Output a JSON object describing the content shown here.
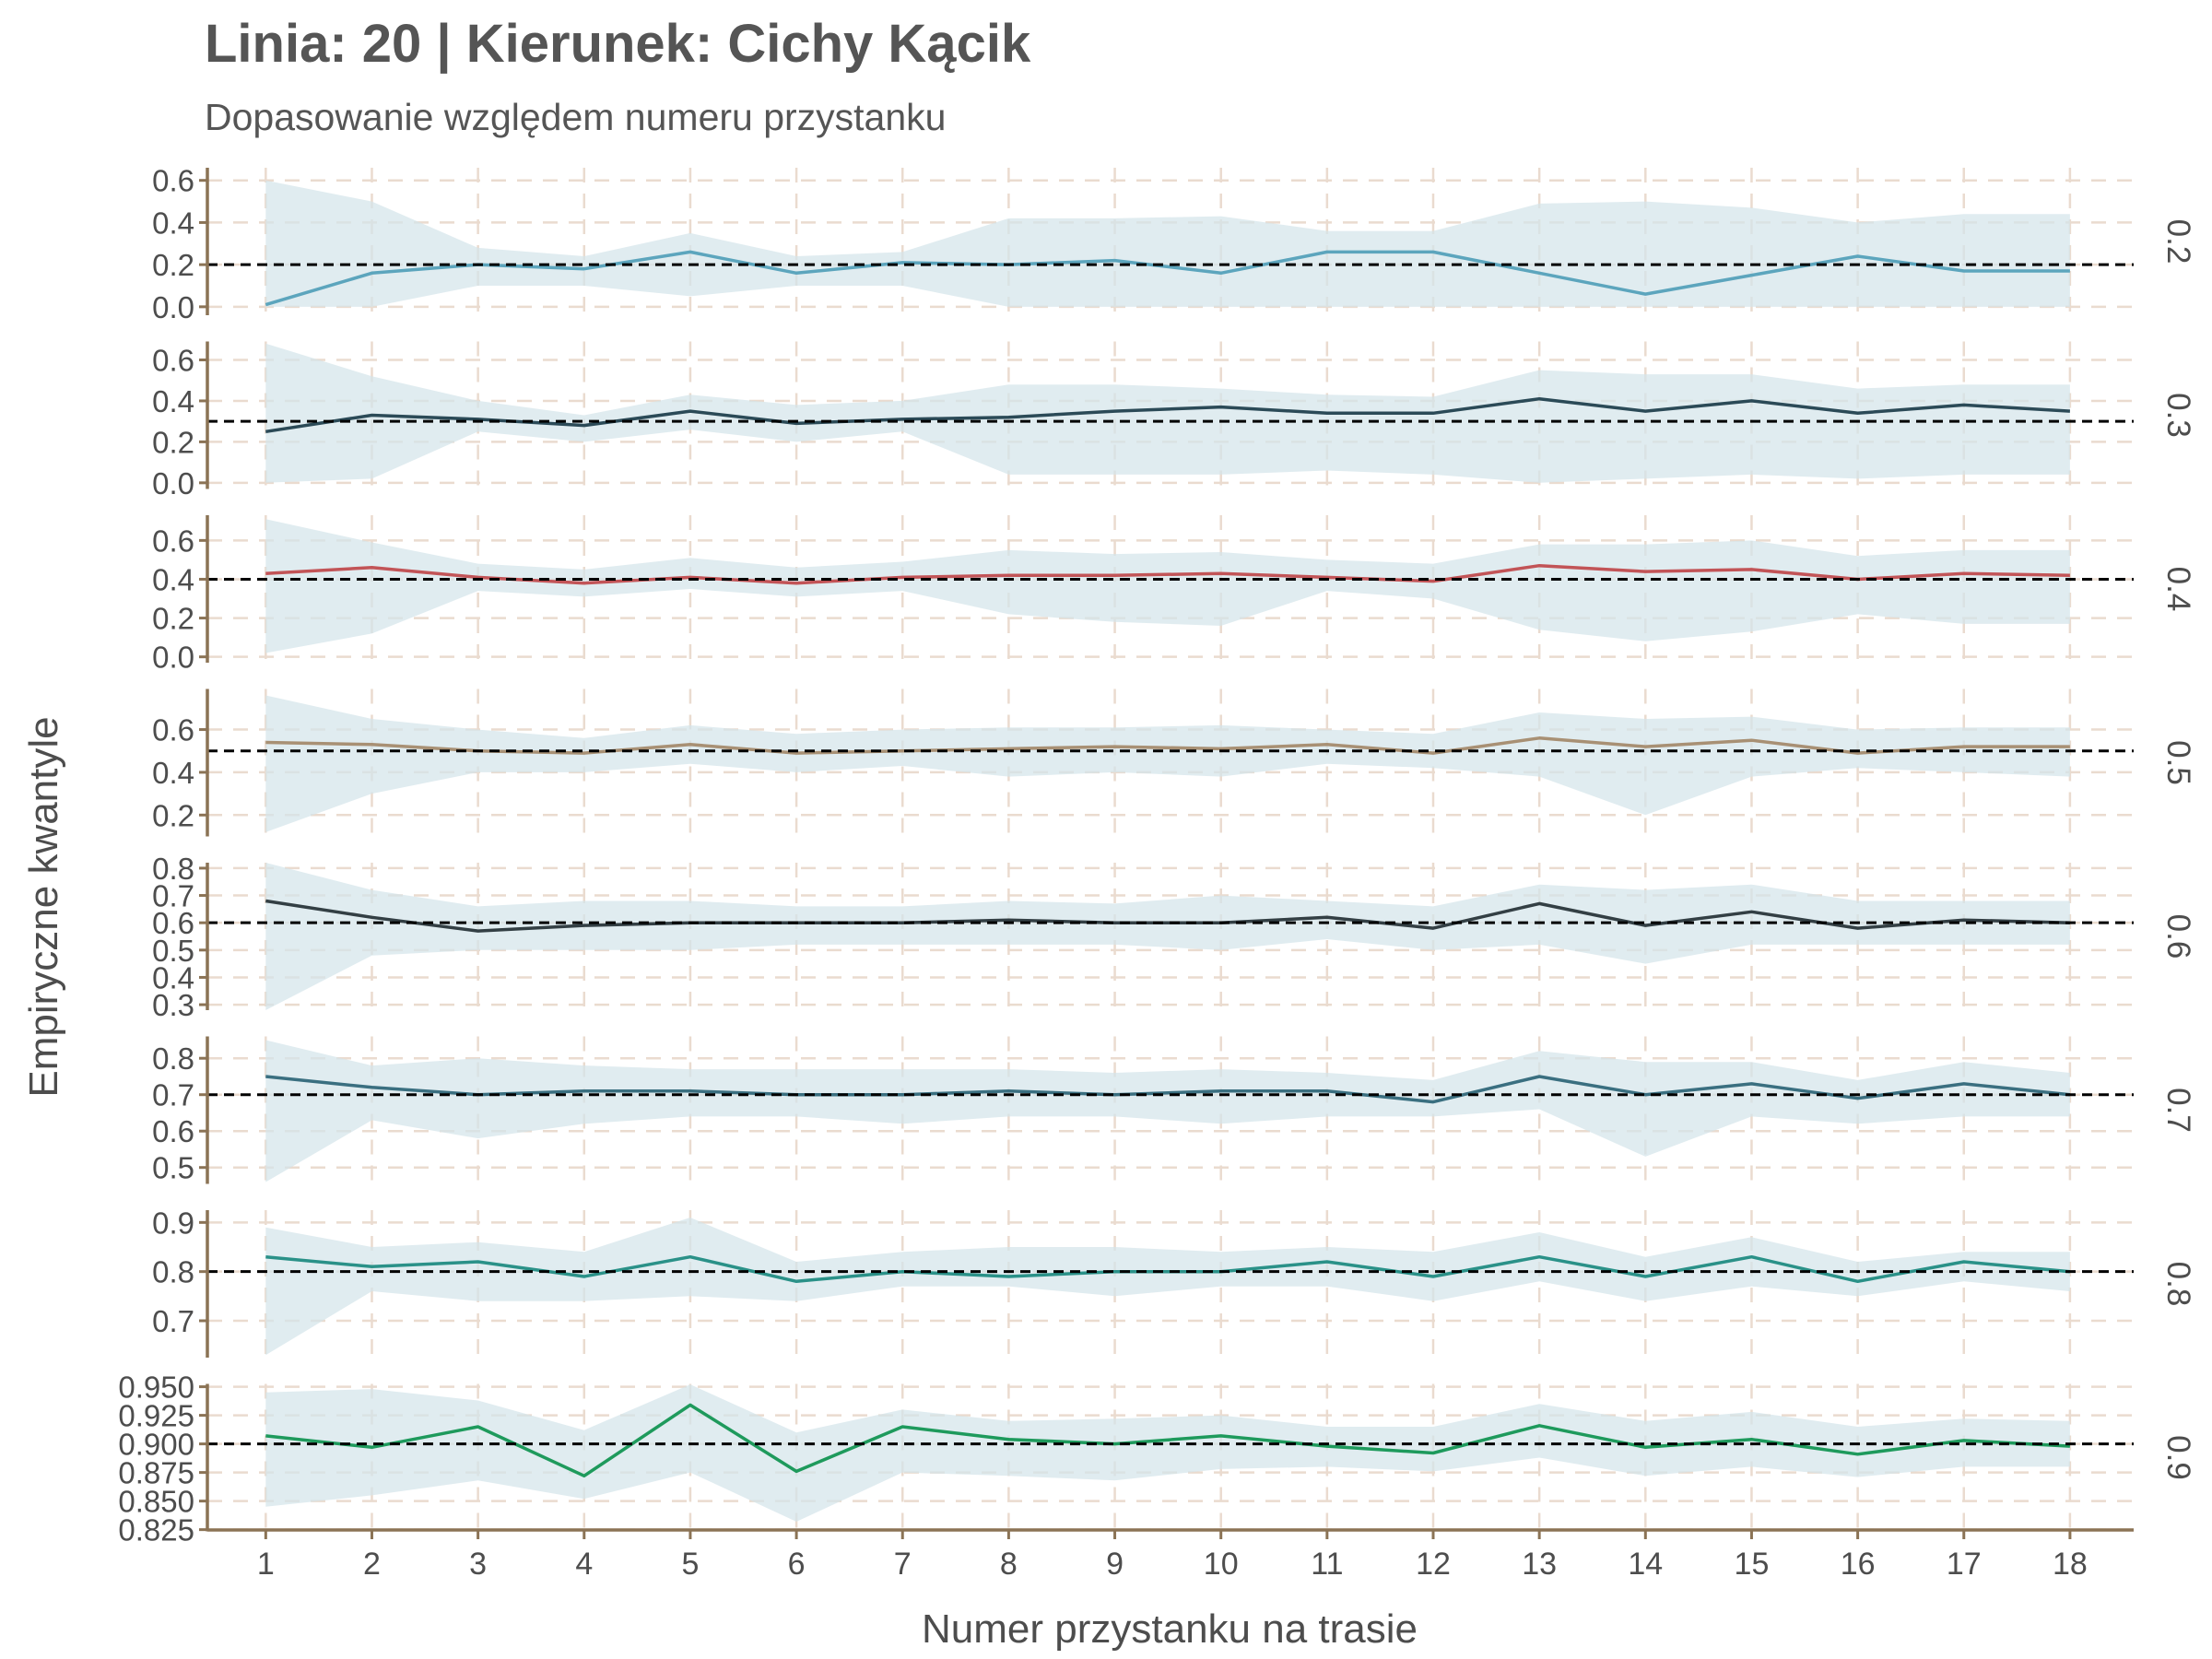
{
  "chart_data": {
    "type": "line",
    "title": "Linia: 20 | Kierunek: Cichy Kącik",
    "subtitle": "Dopasowanie względem numeru przystanku",
    "xlabel": "Numer przystanku na trasie",
    "ylabel": "Empiryczne kwantyle",
    "x": [
      1,
      2,
      3,
      4,
      5,
      6,
      7,
      8,
      9,
      10,
      11,
      12,
      13,
      14,
      15,
      16,
      17,
      18
    ],
    "grid": true,
    "colors": {
      "ribbon": "#d4e5ea",
      "grid": "#eadbcf",
      "axis": "#8b7355",
      "reference": "#000000"
    },
    "panels": [
      {
        "strip": "0.2",
        "reference": 0.2,
        "ylim": [
          -0.04,
          0.66
        ],
        "yticks": [
          0.0,
          0.2,
          0.4,
          0.6
        ],
        "ytick_labels": [
          "0.0",
          "0.2",
          "0.4",
          "0.6"
        ],
        "color": "#5ca5bd",
        "values": [
          0.01,
          0.16,
          0.2,
          0.18,
          0.26,
          0.16,
          0.21,
          0.2,
          0.22,
          0.16,
          0.26,
          0.26,
          0.16,
          0.06,
          0.15,
          0.24,
          0.17,
          0.17
        ],
        "lower": [
          0.0,
          0.0,
          0.1,
          0.1,
          0.05,
          0.1,
          0.1,
          0.0,
          0.0,
          0.0,
          0.0,
          0.0,
          0.0,
          0.0,
          0.0,
          0.0,
          0.0,
          0.0
        ],
        "upper": [
          0.6,
          0.5,
          0.28,
          0.24,
          0.35,
          0.24,
          0.26,
          0.42,
          0.42,
          0.43,
          0.36,
          0.36,
          0.49,
          0.5,
          0.47,
          0.4,
          0.44,
          0.44
        ]
      },
      {
        "strip": "0.3",
        "reference": 0.3,
        "ylim": [
          -0.03,
          0.69
        ],
        "yticks": [
          0.0,
          0.2,
          0.4,
          0.6
        ],
        "ytick_labels": [
          "0.0",
          "0.2",
          "0.4",
          "0.6"
        ],
        "color": "#2b4a57",
        "values": [
          0.25,
          0.33,
          0.31,
          0.28,
          0.35,
          0.29,
          0.31,
          0.32,
          0.35,
          0.37,
          0.34,
          0.34,
          0.41,
          0.35,
          0.4,
          0.34,
          0.38,
          0.35
        ],
        "lower": [
          0.0,
          0.02,
          0.25,
          0.2,
          0.26,
          0.2,
          0.25,
          0.04,
          0.04,
          0.04,
          0.06,
          0.04,
          0.0,
          0.02,
          0.04,
          0.02,
          0.04,
          0.04
        ],
        "upper": [
          0.68,
          0.52,
          0.4,
          0.33,
          0.43,
          0.38,
          0.4,
          0.48,
          0.48,
          0.46,
          0.43,
          0.42,
          0.55,
          0.53,
          0.53,
          0.46,
          0.48,
          0.48
        ]
      },
      {
        "strip": "0.4",
        "reference": 0.4,
        "ylim": [
          -0.03,
          0.73
        ],
        "yticks": [
          0.0,
          0.2,
          0.4,
          0.6
        ],
        "ytick_labels": [
          "0.0",
          "0.2",
          "0.4",
          "0.6"
        ],
        "color": "#c25457",
        "values": [
          0.43,
          0.46,
          0.41,
          0.38,
          0.41,
          0.38,
          0.41,
          0.42,
          0.42,
          0.43,
          0.41,
          0.39,
          0.47,
          0.44,
          0.45,
          0.4,
          0.43,
          0.42
        ],
        "lower": [
          0.02,
          0.12,
          0.34,
          0.31,
          0.35,
          0.31,
          0.34,
          0.22,
          0.18,
          0.16,
          0.34,
          0.3,
          0.14,
          0.08,
          0.13,
          0.22,
          0.17,
          0.17
        ],
        "upper": [
          0.71,
          0.59,
          0.48,
          0.45,
          0.51,
          0.46,
          0.49,
          0.55,
          0.53,
          0.54,
          0.5,
          0.48,
          0.58,
          0.58,
          0.6,
          0.52,
          0.55,
          0.55
        ]
      },
      {
        "strip": "0.5",
        "reference": 0.5,
        "ylim": [
          0.1,
          0.79
        ],
        "yticks": [
          0.2,
          0.4,
          0.6
        ],
        "ytick_labels": [
          "0.2",
          "0.4",
          "0.6"
        ],
        "color": "#a89074",
        "values": [
          0.54,
          0.53,
          0.5,
          0.49,
          0.53,
          0.49,
          0.5,
          0.51,
          0.52,
          0.51,
          0.53,
          0.49,
          0.56,
          0.52,
          0.55,
          0.49,
          0.52,
          0.52
        ],
        "lower": [
          0.12,
          0.3,
          0.4,
          0.4,
          0.44,
          0.4,
          0.43,
          0.38,
          0.4,
          0.38,
          0.44,
          0.42,
          0.38,
          0.2,
          0.38,
          0.42,
          0.4,
          0.38
        ],
        "upper": [
          0.76,
          0.65,
          0.6,
          0.56,
          0.62,
          0.58,
          0.6,
          0.61,
          0.61,
          0.62,
          0.6,
          0.58,
          0.68,
          0.65,
          0.66,
          0.6,
          0.61,
          0.61
        ]
      },
      {
        "strip": "0.6",
        "reference": 0.6,
        "ylim": [
          0.28,
          0.82
        ],
        "yticks": [
          0.3,
          0.4,
          0.5,
          0.6,
          0.7,
          0.8
        ],
        "ytick_labels": [
          "0.3",
          "0.4",
          "0.5",
          "0.6",
          "0.7",
          "0.8"
        ],
        "color": "#333f44",
        "values": [
          0.68,
          0.62,
          0.57,
          0.59,
          0.6,
          0.6,
          0.6,
          0.61,
          0.6,
          0.6,
          0.62,
          0.58,
          0.67,
          0.59,
          0.64,
          0.58,
          0.61,
          0.6
        ],
        "lower": [
          0.28,
          0.48,
          0.5,
          0.5,
          0.5,
          0.52,
          0.52,
          0.52,
          0.52,
          0.5,
          0.54,
          0.5,
          0.52,
          0.45,
          0.52,
          0.52,
          0.52,
          0.52
        ],
        "upper": [
          0.82,
          0.72,
          0.66,
          0.68,
          0.68,
          0.66,
          0.66,
          0.68,
          0.67,
          0.7,
          0.68,
          0.66,
          0.74,
          0.72,
          0.74,
          0.68,
          0.68,
          0.68
        ]
      },
      {
        "strip": "0.7",
        "reference": 0.7,
        "ylim": [
          0.455,
          0.86
        ],
        "yticks": [
          0.5,
          0.6,
          0.7,
          0.8
        ],
        "ytick_labels": [
          "0.5",
          "0.6",
          "0.7",
          "0.8"
        ],
        "color": "#3a6f80",
        "values": [
          0.75,
          0.72,
          0.7,
          0.71,
          0.71,
          0.7,
          0.7,
          0.71,
          0.7,
          0.71,
          0.71,
          0.68,
          0.75,
          0.7,
          0.73,
          0.69,
          0.73,
          0.7
        ],
        "lower": [
          0.46,
          0.63,
          0.58,
          0.62,
          0.64,
          0.64,
          0.62,
          0.64,
          0.64,
          0.62,
          0.64,
          0.64,
          0.66,
          0.53,
          0.64,
          0.62,
          0.64,
          0.64
        ],
        "upper": [
          0.85,
          0.78,
          0.8,
          0.78,
          0.77,
          0.77,
          0.77,
          0.77,
          0.76,
          0.77,
          0.76,
          0.74,
          0.82,
          0.79,
          0.79,
          0.74,
          0.79,
          0.76
        ]
      },
      {
        "strip": "0.8",
        "reference": 0.8,
        "ylim": [
          0.625,
          0.925
        ],
        "yticks": [
          0.7,
          0.8,
          0.9
        ],
        "ytick_labels": [
          "0.7",
          "0.8",
          "0.9"
        ],
        "color": "#2a9188",
        "values": [
          0.83,
          0.81,
          0.82,
          0.79,
          0.83,
          0.78,
          0.8,
          0.79,
          0.8,
          0.8,
          0.82,
          0.79,
          0.83,
          0.79,
          0.83,
          0.78,
          0.82,
          0.8
        ],
        "lower": [
          0.63,
          0.76,
          0.74,
          0.74,
          0.75,
          0.74,
          0.77,
          0.77,
          0.75,
          0.77,
          0.77,
          0.74,
          0.78,
          0.74,
          0.77,
          0.75,
          0.78,
          0.76
        ],
        "upper": [
          0.89,
          0.85,
          0.86,
          0.84,
          0.91,
          0.82,
          0.84,
          0.85,
          0.85,
          0.84,
          0.85,
          0.84,
          0.88,
          0.83,
          0.87,
          0.82,
          0.84,
          0.84
        ]
      },
      {
        "strip": "0.9",
        "reference": 0.9,
        "ylim": [
          0.8235,
          0.9525
        ],
        "yticks": [
          0.825,
          0.85,
          0.875,
          0.9,
          0.925,
          0.95
        ],
        "ytick_labels": [
          "0.825",
          "0.850",
          "0.875",
          "0.900",
          "0.925",
          "0.950"
        ],
        "color": "#1e9a5c",
        "values": [
          0.907,
          0.897,
          0.915,
          0.872,
          0.934,
          0.876,
          0.915,
          0.904,
          0.9,
          0.907,
          0.898,
          0.892,
          0.916,
          0.897,
          0.904,
          0.891,
          0.903,
          0.898
        ],
        "lower": [
          0.845,
          0.855,
          0.868,
          0.852,
          0.875,
          0.832,
          0.875,
          0.872,
          0.868,
          0.878,
          0.88,
          0.876,
          0.888,
          0.872,
          0.88,
          0.871,
          0.88,
          0.88
        ],
        "upper": [
          0.945,
          0.948,
          0.938,
          0.912,
          0.952,
          0.91,
          0.93,
          0.92,
          0.922,
          0.925,
          0.915,
          0.915,
          0.935,
          0.92,
          0.928,
          0.915,
          0.922,
          0.92
        ]
      }
    ]
  }
}
